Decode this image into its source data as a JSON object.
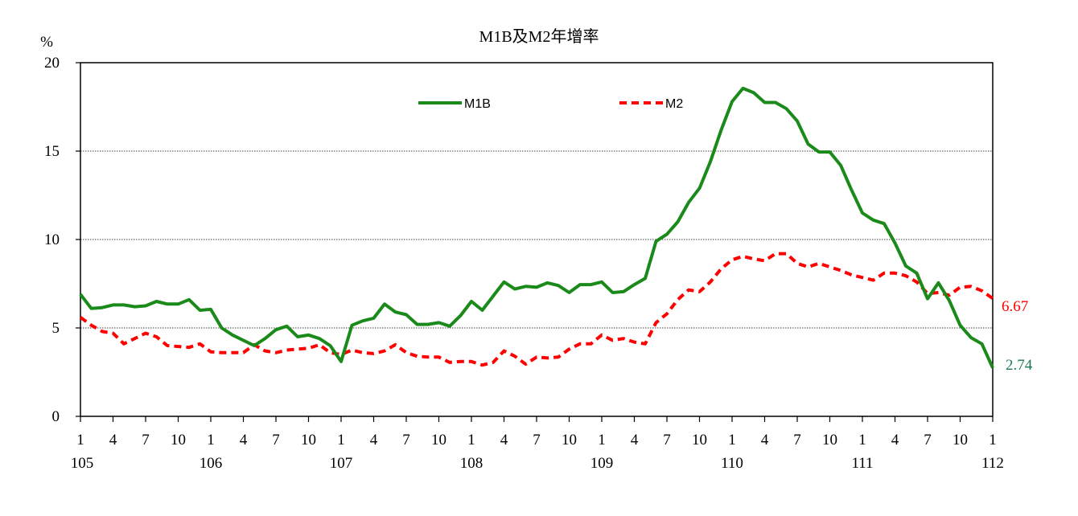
{
  "chart_data": {
    "type": "line",
    "title": "M1B及M2年增率",
    "ylabel": "%",
    "xlabel": "",
    "ylim": [
      0,
      20
    ],
    "yticks": [
      0,
      5,
      10,
      15,
      20
    ],
    "grid": "horizontal dotted at 5, 10, 15",
    "legend_position": "top-center inside plot",
    "x_month_ticks": [
      "1",
      "4",
      "7",
      "10",
      "1",
      "4",
      "7",
      "10",
      "1",
      "4",
      "7",
      "10",
      "1",
      "4",
      "7",
      "10",
      "1",
      "4",
      "7",
      "10",
      "1",
      "4",
      "7",
      "10",
      "1",
      "4",
      "7",
      "10",
      "1"
    ],
    "x_year_labels": [
      "105",
      "106",
      "107",
      "108",
      "109",
      "110",
      "111",
      "112"
    ],
    "x_start": "105-01",
    "x_end": "112-01",
    "series": [
      {
        "name": "M1B",
        "color": "#1a8a1a",
        "style": "solid",
        "values": [
          6.9,
          6.1,
          6.15,
          6.3,
          6.3,
          6.2,
          6.25,
          6.5,
          6.35,
          6.35,
          6.6,
          6.0,
          6.05,
          5.0,
          4.6,
          4.3,
          4.0,
          4.4,
          4.9,
          5.1,
          4.5,
          4.6,
          4.4,
          4.0,
          3.1,
          5.15,
          5.4,
          5.55,
          6.35,
          5.9,
          5.75,
          5.2,
          5.2,
          5.3,
          5.1,
          5.7,
          6.5,
          6.0,
          6.8,
          7.6,
          7.2,
          7.35,
          7.3,
          7.55,
          7.4,
          7.0,
          7.45,
          7.45,
          7.6,
          7.0,
          7.05,
          7.45,
          7.8,
          9.9,
          10.3,
          11.0,
          12.1,
          12.9,
          14.4,
          16.2,
          17.8,
          18.55,
          18.3,
          17.75,
          17.75,
          17.4,
          16.7,
          15.4,
          14.95,
          14.95,
          14.2,
          12.8,
          11.5,
          11.1,
          10.9,
          9.8,
          8.5,
          8.1,
          6.65,
          7.55,
          6.55,
          5.15,
          4.45,
          4.1,
          2.74
        ],
        "end_label": "2.74"
      },
      {
        "name": "M2",
        "color": "#ff0000",
        "style": "dashed",
        "values": [
          5.6,
          5.15,
          4.8,
          4.7,
          4.1,
          4.4,
          4.7,
          4.5,
          4.0,
          3.95,
          3.9,
          4.1,
          3.65,
          3.6,
          3.6,
          3.6,
          4.05,
          3.7,
          3.6,
          3.75,
          3.8,
          3.85,
          4.05,
          3.6,
          3.5,
          3.75,
          3.6,
          3.55,
          3.7,
          4.05,
          3.6,
          3.4,
          3.35,
          3.35,
          3.05,
          3.1,
          3.1,
          2.9,
          3.05,
          3.7,
          3.4,
          2.95,
          3.35,
          3.3,
          3.35,
          3.8,
          4.1,
          4.1,
          4.6,
          4.3,
          4.4,
          4.2,
          4.1,
          5.3,
          5.8,
          6.6,
          7.15,
          7.05,
          7.6,
          8.35,
          8.85,
          9.05,
          8.9,
          8.8,
          9.2,
          9.2,
          8.65,
          8.45,
          8.65,
          8.45,
          8.25,
          8.0,
          7.85,
          7.7,
          8.1,
          8.1,
          7.95,
          7.6,
          6.95,
          7.0,
          6.85,
          7.3,
          7.35,
          7.1,
          6.67
        ],
        "end_label": "6.67"
      }
    ]
  }
}
